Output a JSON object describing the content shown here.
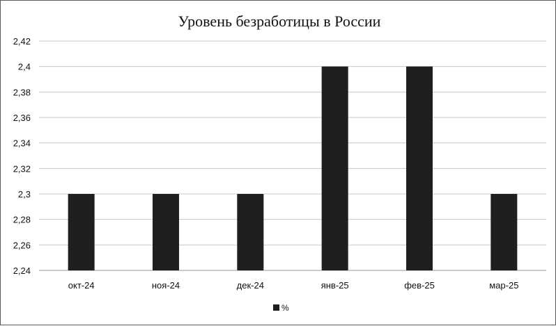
{
  "chart_data": {
    "type": "bar",
    "title": "Уровень безработицы в России",
    "xlabel": "",
    "ylabel": "",
    "categories": [
      "окт-24",
      "ноя-24",
      "дек-24",
      "янв-25",
      "фев-25",
      "мар-25"
    ],
    "series": [
      {
        "name": "%",
        "values": [
          2.3,
          2.3,
          2.3,
          2.4,
          2.4,
          2.3
        ],
        "color": "#1f1f1f"
      }
    ],
    "ylim": [
      2.24,
      2.42
    ],
    "yticks": [
      "2,24",
      "2,26",
      "2,28",
      "2,3",
      "2,32",
      "2,34",
      "2,36",
      "2,38",
      "2,4",
      "2,42"
    ],
    "grid": true,
    "legend_position": "bottom"
  }
}
